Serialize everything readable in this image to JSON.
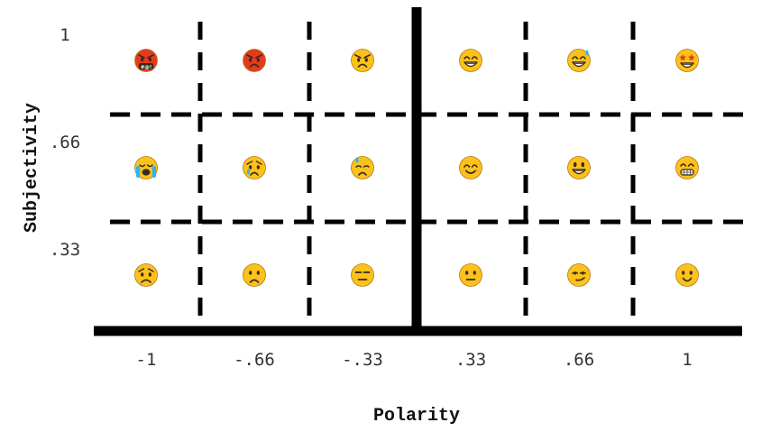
{
  "colors": {
    "line": "#000000",
    "emoji_yellow": "#FCC21B",
    "emoji_red": "#E53A1E",
    "emoji_outline": "#3A2A1A",
    "tear_blue": "#29B6F6",
    "tick_text": "#333333"
  },
  "axes": {
    "x_title": "Polarity",
    "y_title": "Subjectivity",
    "x_ticks": [
      "-1",
      "-.66",
      "-.33",
      ".33",
      ".66",
      "1"
    ],
    "y_ticks": [
      "1",
      ".66",
      ".33"
    ]
  },
  "grid": {
    "rows": [
      [
        "enraged-face-with-symbols-icon",
        "pouting-face-icon",
        "angry-face-icon",
        "grinning-face-with-smiling-eyes-icon",
        "grinning-face-with-sweat-icon",
        "star-struck-face-icon"
      ],
      [
        "loudly-crying-face-icon",
        "crying-face-icon",
        "downcast-face-with-sweat-icon",
        "smiling-face-with-smiling-eyes-icon",
        "grinning-face-with-big-eyes-icon",
        "beaming-face-icon"
      ],
      [
        "frowning-face-icon",
        "slightly-frowning-face-icon",
        "expressionless-face-icon",
        "neutral-face-icon",
        "smirking-face-icon",
        "slightly-smiling-face-icon"
      ]
    ]
  }
}
